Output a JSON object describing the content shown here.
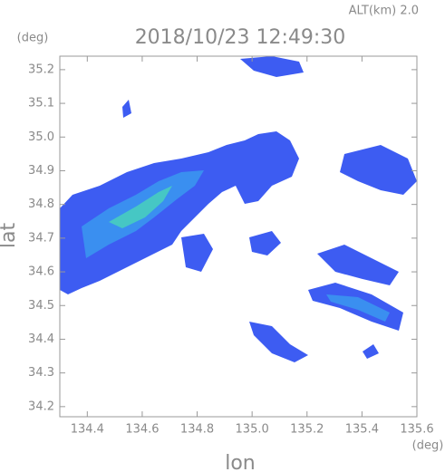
{
  "chart_data": {
    "type": "radar-map",
    "header_right": "ALT(km) 2.0",
    "title": "2018/10/23 12:49:30",
    "y_unit": "(deg)",
    "x_unit": "(deg)",
    "ylabel": "lat",
    "xlabel": "lon",
    "xlim": [
      134.3,
      135.6
    ],
    "xticks": [
      134.4,
      134.6,
      134.8,
      {
        "value": 135.0,
        "label": "135.0"
      },
      135.2,
      135.4,
      135.6
    ],
    "ylim": [
      34.17,
      35.24
    ],
    "yticks": [
      34.2,
      34.3,
      34.4,
      34.5,
      34.6,
      34.7,
      34.8,
      34.9,
      {
        "value": 35.0,
        "label": "35.0"
      },
      35.1,
      35.2
    ]
  }
}
